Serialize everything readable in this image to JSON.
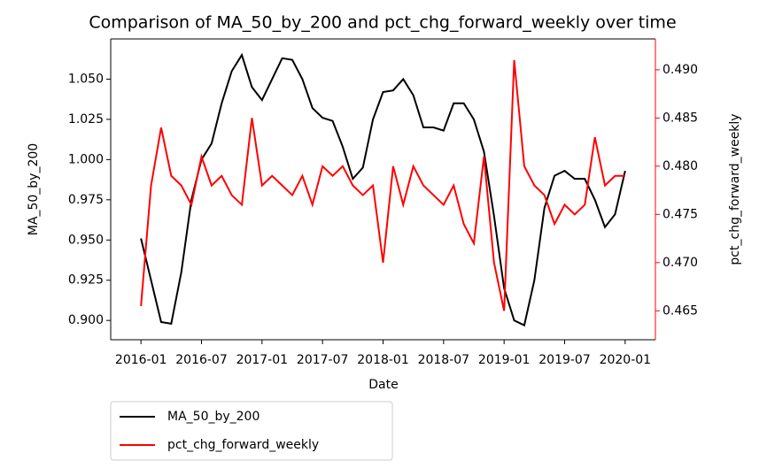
{
  "chart_data": {
    "type": "line",
    "title": "Comparison of MA_50_by_200 and pct_chg_forward_weekly over time",
    "x_label": "Date",
    "y_label": "MA_50_by_200",
    "y2_label": "pct_chg_forward_weekly",
    "x": [
      "2016-01",
      "2016-02",
      "2016-03",
      "2016-04",
      "2016-05",
      "2016-06",
      "2016-07",
      "2016-08",
      "2016-09",
      "2016-10",
      "2016-11",
      "2016-12",
      "2017-01",
      "2017-02",
      "2017-03",
      "2017-04",
      "2017-05",
      "2017-06",
      "2017-07",
      "2017-08",
      "2017-09",
      "2017-10",
      "2017-11",
      "2017-12",
      "2018-01",
      "2018-02",
      "2018-03",
      "2018-04",
      "2018-05",
      "2018-06",
      "2018-07",
      "2018-08",
      "2018-09",
      "2018-10",
      "2018-11",
      "2018-12",
      "2019-01",
      "2019-02",
      "2019-03",
      "2019-04",
      "2019-05",
      "2019-06",
      "2019-07",
      "2019-08",
      "2019-09",
      "2019-10",
      "2019-11",
      "2019-12",
      "2020-01"
    ],
    "series": [
      {
        "name": "MA_50_by_200",
        "color": "#000000",
        "axis": "y",
        "values": [
          0.951,
          0.925,
          0.899,
          0.898,
          0.93,
          0.975,
          1.0,
          1.01,
          1.035,
          1.055,
          1.065,
          1.045,
          1.037,
          1.05,
          1.063,
          1.062,
          1.05,
          1.032,
          1.026,
          1.024,
          1.008,
          0.988,
          0.995,
          1.025,
          1.042,
          1.043,
          1.05,
          1.04,
          1.02,
          1.02,
          1.018,
          1.035,
          1.035,
          1.025,
          1.005,
          0.965,
          0.92,
          0.9,
          0.897,
          0.925,
          0.97,
          0.99,
          0.993,
          0.988,
          0.988,
          0.975,
          0.958,
          0.966,
          0.993
        ]
      },
      {
        "name": "pct_chg_forward_weekly",
        "color": "#ff0000",
        "axis": "y2",
        "values": [
          0.4655,
          0.478,
          0.484,
          0.479,
          0.478,
          0.476,
          0.481,
          0.478,
          0.479,
          0.477,
          0.476,
          0.485,
          0.478,
          0.479,
          0.478,
          0.477,
          0.479,
          0.476,
          0.48,
          0.479,
          0.48,
          0.478,
          0.477,
          0.478,
          0.47,
          0.48,
          0.476,
          0.48,
          0.478,
          0.477,
          0.476,
          0.478,
          0.474,
          0.472,
          0.481,
          0.47,
          0.465,
          0.491,
          0.48,
          0.478,
          0.477,
          0.474,
          0.476,
          0.475,
          0.476,
          0.483,
          0.478,
          0.479,
          0.479
        ]
      }
    ],
    "xlim": [
      "2015-10",
      "2020-04"
    ],
    "xticks": [
      "2016-01",
      "2016-07",
      "2017-01",
      "2017-07",
      "2018-01",
      "2018-07",
      "2019-01",
      "2019-07",
      "2020-01"
    ],
    "ylim": [
      0.888,
      1.075
    ],
    "yticks": [
      {
        "value": 0.9,
        "label": "0.900"
      },
      0.925,
      {
        "value": 0.95,
        "label": "0.950"
      },
      0.975,
      {
        "value": 1.0,
        "label": "1.000"
      },
      1.025,
      {
        "value": 1.05,
        "label": "1.050"
      }
    ],
    "y2lim": [
      0.462,
      0.4932
    ],
    "y2ticks": [
      {
        "value": 0.465,
        "label": "0.465"
      },
      {
        "value": 0.47,
        "label": "0.470"
      },
      0.475,
      {
        "value": 0.48,
        "label": "0.480"
      },
      0.485,
      {
        "value": 0.49,
        "label": "0.490"
      }
    ],
    "y2_color": "#ff0000",
    "legend": "lower left"
  }
}
